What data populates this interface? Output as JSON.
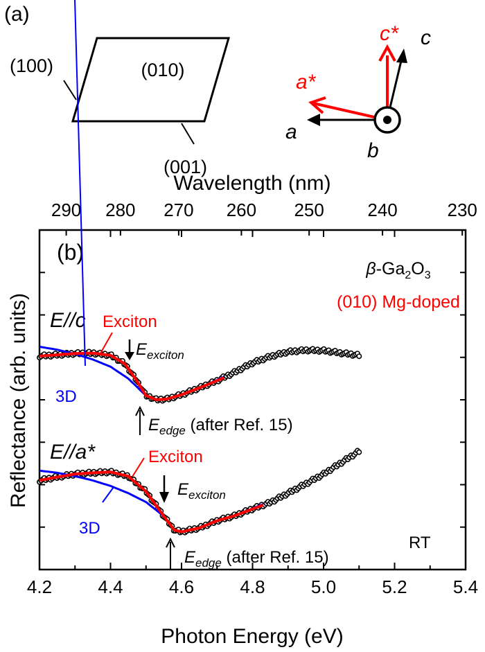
{
  "panel_a": {
    "label": "(a)",
    "faces": {
      "front": "(010)",
      "side": "(100)",
      "bottom": "(001)"
    },
    "axes": {
      "c_star": "c*",
      "c": "c",
      "a_star": "a*",
      "a": "a",
      "b": "b"
    },
    "colors": {
      "reciprocal": "#ff0000",
      "real": "#000000"
    }
  },
  "chart_data": {
    "type": "scatter",
    "panel_label": "(b)",
    "xlabel": "Photon Energy (eV)",
    "ylabel": "Reflectance (arb. units)",
    "x2label": "Wavelength (nm)",
    "xlim": [
      4.2,
      5.4
    ],
    "ylim": [
      0,
      8
    ],
    "xticks": [
      "4.2",
      "4.4",
      "4.6",
      "4.8",
      "5.0",
      "5.2",
      "5.4"
    ],
    "xtick_values": [
      4.2,
      4.4,
      4.6,
      4.8,
      5.0,
      5.2,
      5.4
    ],
    "x2ticks": [
      "290",
      "280",
      "270",
      "260",
      "250",
      "240",
      "230"
    ],
    "x2tick_values_nm": [
      290,
      280,
      270,
      260,
      250,
      240,
      230
    ],
    "yticks_count": 8,
    "sample": {
      "material_prefix": "β",
      "material": "-Ga",
      "sub1": "2",
      "o": "O",
      "sub2": "3",
      "description": "(010) Mg-doped"
    },
    "temperature": "RT",
    "colors": {
      "data": "#000000",
      "exciton": "#ff0000",
      "three_d": "#0000ff"
    },
    "series": [
      {
        "name": "E//c",
        "label_e": "E",
        "label_rest": "//c",
        "exciton_label": "Exciton",
        "three_d_label": "3D",
        "eexciton_label": {
          "main": "E",
          "sub": "exciton"
        },
        "eedge_label": {
          "main": "E",
          "sub": "edge",
          "rest": " (after Ref. 15)"
        },
        "data": [
          [
            4.2,
            5.03
          ],
          [
            4.25,
            5.06
          ],
          [
            4.3,
            5.09
          ],
          [
            4.35,
            5.1
          ],
          [
            4.4,
            5.05
          ],
          [
            4.44,
            4.85
          ],
          [
            4.47,
            4.5
          ],
          [
            4.5,
            4.1
          ],
          [
            4.53,
            4.0
          ],
          [
            4.56,
            4.02
          ],
          [
            4.6,
            4.12
          ],
          [
            4.65,
            4.28
          ],
          [
            4.7,
            4.45
          ],
          [
            4.75,
            4.65
          ],
          [
            4.8,
            4.87
          ],
          [
            4.85,
            5.02
          ],
          [
            4.9,
            5.13
          ],
          [
            4.95,
            5.17
          ],
          [
            5.0,
            5.16
          ],
          [
            5.05,
            5.1
          ],
          [
            5.1,
            5.05
          ]
        ],
        "exciton_fit": [
          [
            4.2,
            5.03
          ],
          [
            4.25,
            5.06
          ],
          [
            4.3,
            5.09
          ],
          [
            4.35,
            5.1
          ],
          [
            4.4,
            5.05
          ],
          [
            4.44,
            4.85
          ],
          [
            4.47,
            4.5
          ],
          [
            4.5,
            4.1
          ],
          [
            4.53,
            4.0
          ],
          [
            4.56,
            4.02
          ],
          [
            4.6,
            4.12
          ],
          [
            4.65,
            4.28
          ],
          [
            4.72,
            4.52
          ]
        ],
        "three_d_fit": [
          [
            4.2,
            5.25
          ],
          [
            4.25,
            5.18
          ],
          [
            4.3,
            5.08
          ],
          [
            4.35,
            4.95
          ],
          [
            4.4,
            4.78
          ],
          [
            4.45,
            4.5
          ],
          [
            4.5,
            4.1
          ],
          [
            4.53,
            4.0
          ],
          [
            4.56,
            4.02
          ],
          [
            4.6,
            4.12
          ],
          [
            4.65,
            4.28
          ],
          [
            4.72,
            4.54
          ]
        ],
        "e_exciton": 4.46,
        "e_edge": 4.48
      },
      {
        "name": "E//a*",
        "label_e": "E",
        "label_rest": "//a*",
        "exciton_label": "Exciton",
        "three_d_label": "3D",
        "eexciton_label": {
          "main": "E",
          "sub": "exciton"
        },
        "eedge_label": {
          "main": "E",
          "sub": "edge",
          "rest": " (after Ref. 15)"
        },
        "data": [
          [
            4.2,
            2.1
          ],
          [
            4.25,
            2.18
          ],
          [
            4.3,
            2.25
          ],
          [
            4.35,
            2.28
          ],
          [
            4.4,
            2.3
          ],
          [
            4.45,
            2.2
          ],
          [
            4.5,
            1.84
          ],
          [
            4.55,
            1.26
          ],
          [
            4.58,
            0.93
          ],
          [
            4.6,
            0.89
          ],
          [
            4.65,
            0.98
          ],
          [
            4.7,
            1.15
          ],
          [
            4.75,
            1.27
          ],
          [
            4.8,
            1.43
          ],
          [
            4.85,
            1.58
          ],
          [
            4.9,
            1.8
          ],
          [
            4.95,
            2.02
          ],
          [
            5.0,
            2.25
          ],
          [
            5.05,
            2.52
          ],
          [
            5.1,
            2.79
          ]
        ],
        "exciton_fit": [
          [
            4.2,
            2.1
          ],
          [
            4.25,
            2.18
          ],
          [
            4.3,
            2.25
          ],
          [
            4.35,
            2.28
          ],
          [
            4.4,
            2.3
          ],
          [
            4.45,
            2.2
          ],
          [
            4.5,
            1.84
          ],
          [
            4.55,
            1.26
          ],
          [
            4.58,
            0.93
          ],
          [
            4.6,
            0.89
          ],
          [
            4.65,
            0.98
          ],
          [
            4.7,
            1.15
          ],
          [
            4.75,
            1.27
          ],
          [
            4.83,
            1.52
          ]
        ],
        "three_d_fit": [
          [
            4.2,
            2.33
          ],
          [
            4.25,
            2.28
          ],
          [
            4.3,
            2.2
          ],
          [
            4.35,
            2.1
          ],
          [
            4.4,
            1.97
          ],
          [
            4.45,
            1.8
          ],
          [
            4.5,
            1.59
          ],
          [
            4.55,
            1.26
          ],
          [
            4.58,
            0.93
          ],
          [
            4.6,
            0.89
          ],
          [
            4.65,
            0.98
          ],
          [
            4.7,
            1.15
          ],
          [
            4.75,
            1.27
          ],
          [
            4.83,
            1.54
          ]
        ],
        "e_exciton": 4.55,
        "e_edge": 4.57
      }
    ]
  }
}
